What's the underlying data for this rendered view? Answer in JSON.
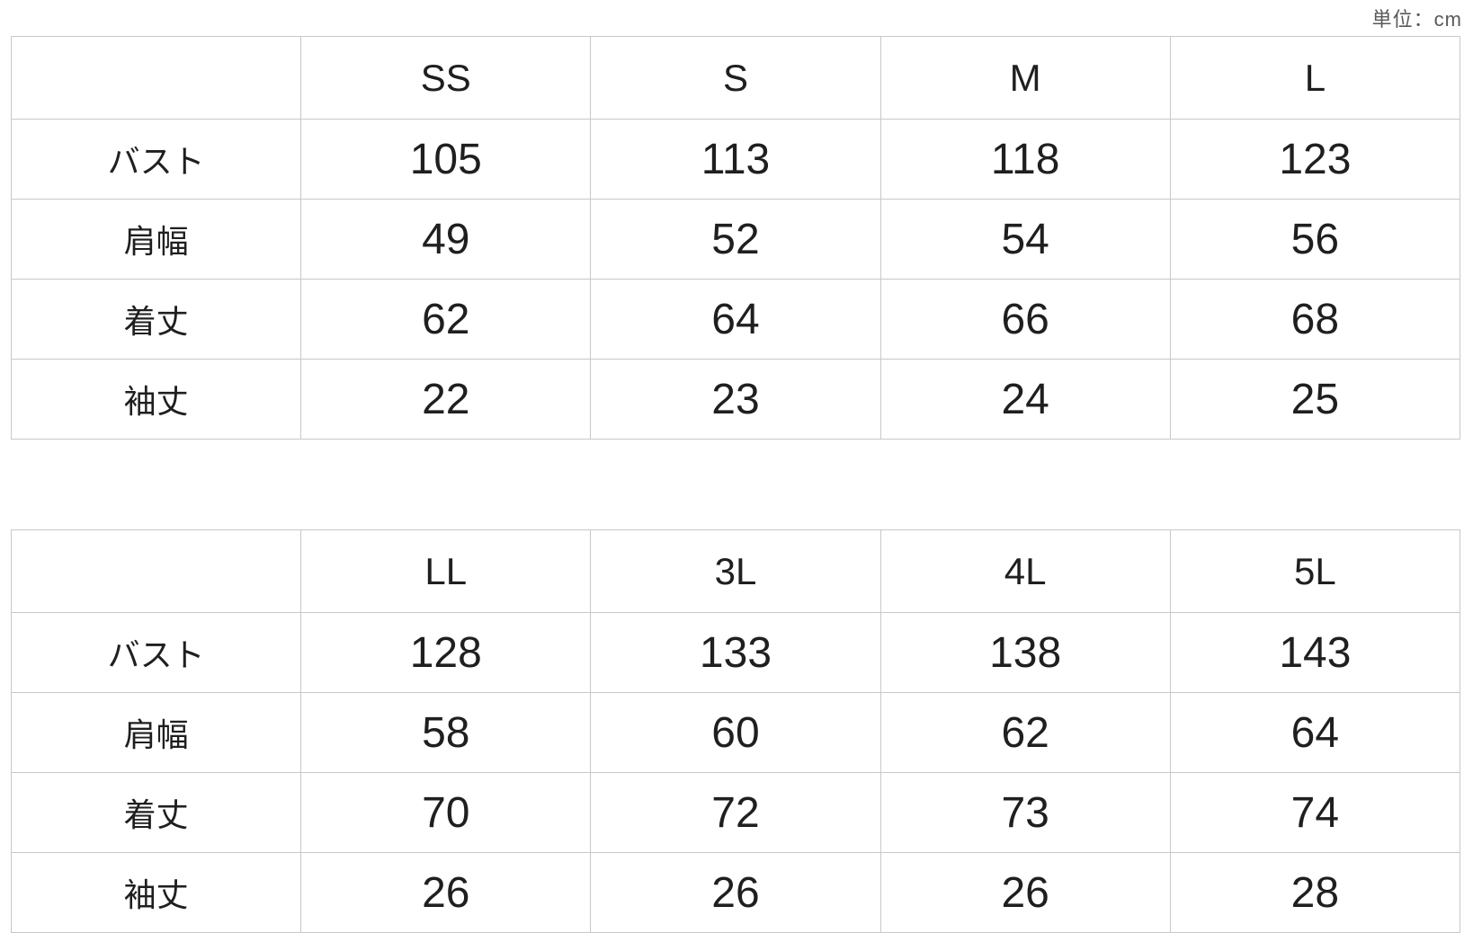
{
  "page": {
    "unit_label": "単位：cm"
  },
  "colors": {
    "background": "#ffffff",
    "border": "#c8c8c8",
    "text": "#1f1f1f",
    "unit_text": "#595959"
  },
  "chart_data": [
    {
      "type": "table",
      "title": "",
      "unit": "単位：cm",
      "columns": [
        "",
        "SS",
        "S",
        "M",
        "L"
      ],
      "rows": [
        [
          "バスト",
          "105",
          "113",
          "118",
          "123"
        ],
        [
          "肩幅",
          "49",
          "52",
          "54",
          "56"
        ],
        [
          "着丈",
          "62",
          "64",
          "66",
          "68"
        ],
        [
          "袖丈",
          "22",
          "23",
          "24",
          "25"
        ]
      ]
    },
    {
      "type": "table",
      "title": "",
      "unit": "単位：cm",
      "columns": [
        "",
        "LL",
        "3L",
        "4L",
        "5L"
      ],
      "rows": [
        [
          "バスト",
          "128",
          "133",
          "138",
          "143"
        ],
        [
          "肩幅",
          "58",
          "60",
          "62",
          "64"
        ],
        [
          "着丈",
          "70",
          "72",
          "73",
          "74"
        ],
        [
          "袖丈",
          "26",
          "26",
          "26",
          "28"
        ]
      ]
    }
  ]
}
